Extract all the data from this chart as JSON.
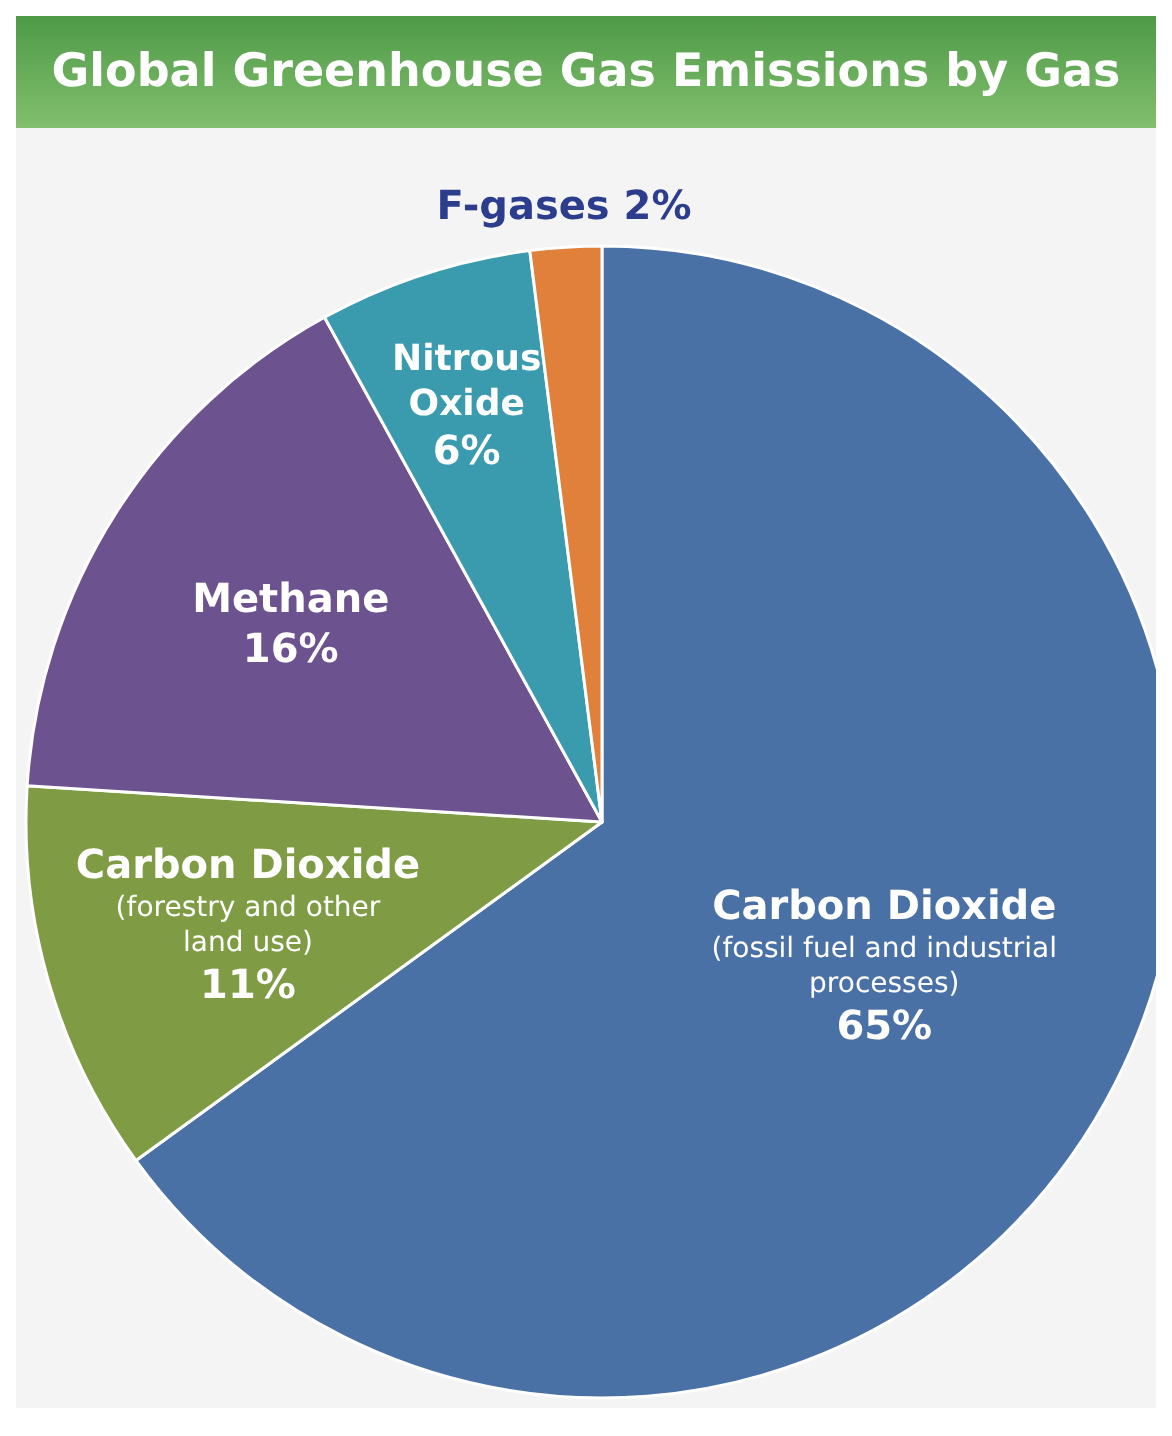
{
  "chart_data": {
    "type": "pie",
    "title": "Global Greenhouse Gas Emissions by Gas",
    "categories": [
      "Carbon Dioxide (fossil fuel and industrial processes)",
      "Carbon Dioxide (forestry and other land use)",
      "Methane",
      "Nitrous Oxide",
      "F-gases"
    ],
    "values": [
      65,
      11,
      16,
      6,
      2
    ],
    "value_labels": [
      "65%",
      "11%",
      "16%",
      "6%",
      "2%"
    ],
    "colors": [
      "#4a71a6",
      "#7f9c45",
      "#6c528f",
      "#3a9aae",
      "#e0803a"
    ]
  }
}
